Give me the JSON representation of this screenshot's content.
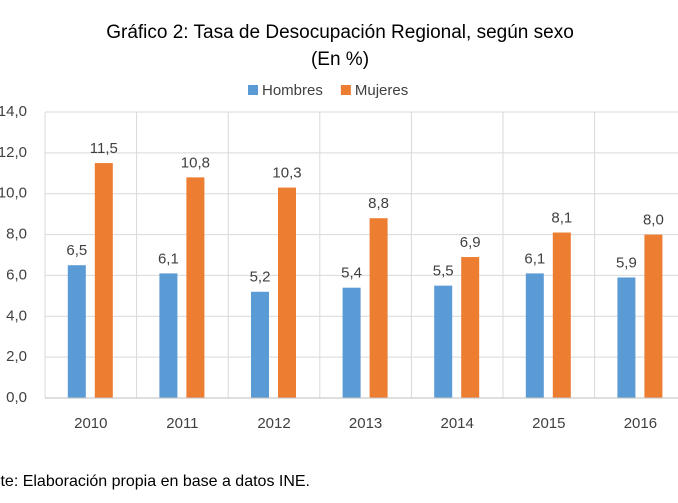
{
  "chart_data": {
    "type": "bar",
    "title": "Gráfico 2: Tasa de Desocupación Regional, según sexo",
    "subtitle": "(En %)",
    "categories": [
      "2010",
      "2011",
      "2012",
      "2013",
      "2014",
      "2015",
      "2016"
    ],
    "series": [
      {
        "name": "Hombres",
        "color": "#5b9bd5",
        "values": [
          6.5,
          6.1,
          5.2,
          5.4,
          5.5,
          6.1,
          5.9
        ],
        "value_labels": [
          "6,5",
          "6,1",
          "5,2",
          "5,4",
          "5,5",
          "6,1",
          "5,9"
        ]
      },
      {
        "name": "Mujeres",
        "color": "#ed7d31",
        "values": [
          11.5,
          10.8,
          10.3,
          8.8,
          6.9,
          8.1,
          8.0
        ],
        "value_labels": [
          "11,5",
          "10,8",
          "10,3",
          "8,8",
          "6,9",
          "8,1",
          "8,0"
        ]
      }
    ],
    "ylim": [
      0,
      14
    ],
    "yticks": [
      {
        "value": 0,
        "label": "0,0"
      },
      {
        "value": 2,
        "label": "2,0"
      },
      {
        "value": 4,
        "label": "4,0"
      },
      {
        "value": 6,
        "label": "6,0"
      },
      {
        "value": 8,
        "label": "8,0"
      },
      {
        "value": 10,
        "label": "10,0"
      },
      {
        "value": 12,
        "label": "12,0"
      },
      {
        "value": 14,
        "label": "14,0"
      }
    ],
    "grid": true,
    "legend": "top",
    "footnote": "Fuente: Elaboración propia en base a datos INE."
  }
}
